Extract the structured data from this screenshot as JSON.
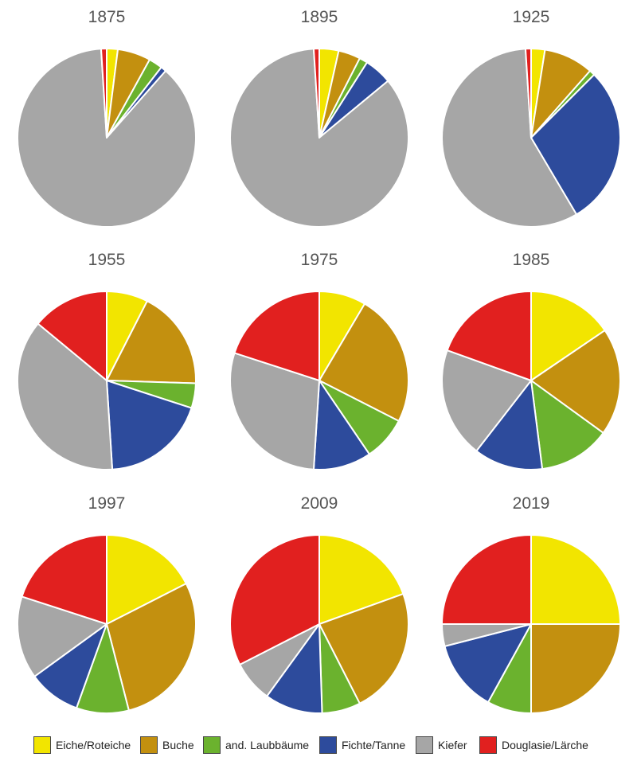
{
  "legend": {
    "items": [
      {
        "label": "Eiche/Roteiche",
        "color": "#f2e500"
      },
      {
        "label": "Buche",
        "color": "#c3900f"
      },
      {
        "label": "and. Laubbäume",
        "color": "#6bb22e"
      },
      {
        "label": "Fichte/Tanne",
        "color": "#2d4b9c"
      },
      {
        "label": "Kiefer",
        "color": "#a6a6a6"
      },
      {
        "label": "Douglasie/Lärche",
        "color": "#e1201f"
      }
    ]
  },
  "chart_data": [
    {
      "type": "pie",
      "title": "1875",
      "categories": [
        "Eiche/Roteiche",
        "Buche",
        "and. Laubbäume",
        "Fichte/Tanne",
        "Kiefer",
        "Douglasie/Lärche"
      ],
      "values": [
        2,
        6,
        2.5,
        1,
        87.5,
        1
      ]
    },
    {
      "type": "pie",
      "title": "1895",
      "categories": [
        "Eiche/Roteiche",
        "Buche",
        "and. Laubbäume",
        "Fichte/Tanne",
        "Kiefer",
        "Douglasie/Lärche"
      ],
      "values": [
        3.5,
        4,
        1.5,
        5,
        85,
        1
      ]
    },
    {
      "type": "pie",
      "title": "1925",
      "categories": [
        "Eiche/Roteiche",
        "Buche",
        "and. Laubbäume",
        "Fichte/Tanne",
        "Kiefer",
        "Douglasie/Lärche"
      ],
      "values": [
        2.5,
        9,
        1,
        29,
        57.5,
        1
      ]
    },
    {
      "type": "pie",
      "title": "1955",
      "categories": [
        "Eiche/Roteiche",
        "Buche",
        "and. Laubbäume",
        "Fichte/Tanne",
        "Kiefer",
        "Douglasie/Lärche"
      ],
      "values": [
        7.5,
        18,
        4.5,
        19,
        37,
        14
      ]
    },
    {
      "type": "pie",
      "title": "1975",
      "categories": [
        "Eiche/Roteiche",
        "Buche",
        "and. Laubbäume",
        "Fichte/Tanne",
        "Kiefer",
        "Douglasie/Lärche"
      ],
      "values": [
        8.5,
        24,
        8,
        10.5,
        29,
        20
      ]
    },
    {
      "type": "pie",
      "title": "1985",
      "categories": [
        "Eiche/Roteiche",
        "Buche",
        "and. Laubbäume",
        "Fichte/Tanne",
        "Kiefer",
        "Douglasie/Lärche"
      ],
      "values": [
        15.5,
        19.5,
        13,
        12.5,
        20,
        19.5
      ]
    },
    {
      "type": "pie",
      "title": "1997",
      "categories": [
        "Eiche/Roteiche",
        "Buche",
        "and. Laubbäume",
        "Fichte/Tanne",
        "Kiefer",
        "Douglasie/Lärche"
      ],
      "values": [
        17.5,
        28.5,
        9.5,
        9.5,
        15,
        20
      ]
    },
    {
      "type": "pie",
      "title": "2009",
      "categories": [
        "Eiche/Roteiche",
        "Buche",
        "and. Laubbäume",
        "Fichte/Tanne",
        "Kiefer",
        "Douglasie/Lärche"
      ],
      "values": [
        19.5,
        23,
        7,
        10.5,
        7.5,
        32.5
      ]
    },
    {
      "type": "pie",
      "title": "2019",
      "categories": [
        "Eiche/Roteiche",
        "Buche",
        "and. Laubbäume",
        "Fichte/Tanne",
        "Kiefer",
        "Douglasie/Lärche"
      ],
      "values": [
        25,
        25,
        8,
        13,
        4,
        25
      ]
    }
  ]
}
